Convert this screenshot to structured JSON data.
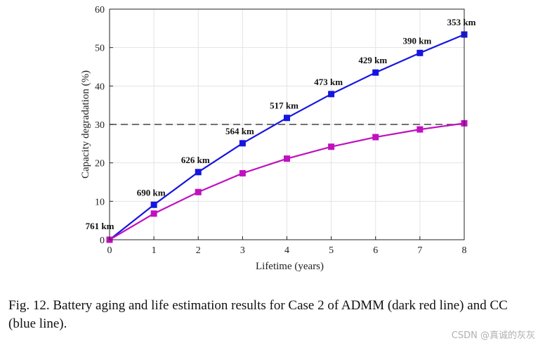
{
  "chart_data": {
    "type": "line",
    "xlabel": "Lifetime (years)",
    "ylabel": "Capacity degradation (%)",
    "xlim": [
      0,
      8
    ],
    "ylim": [
      0,
      60
    ],
    "xticks": [
      0,
      1,
      2,
      3,
      4,
      5,
      6,
      7,
      8
    ],
    "yticks": [
      0,
      10,
      20,
      30,
      40,
      50,
      60
    ],
    "grid": true,
    "threshold": {
      "y": 30,
      "style": "dashed",
      "color": "#444444"
    },
    "series": [
      {
        "color": "#1515e0",
        "marker": "square",
        "x": [
          0,
          1,
          2,
          3,
          4,
          5,
          6,
          7,
          8
        ],
        "y": [
          0,
          9.1,
          17.6,
          25.1,
          31.7,
          37.9,
          43.5,
          48.6,
          53.4
        ],
        "labels": [
          "761 km",
          "690 km",
          "626 km",
          "564 km",
          "517 km",
          "473 km",
          "429 km",
          "390 km",
          "353 km"
        ]
      },
      {
        "color": "#c010c0",
        "marker": "square",
        "x": [
          0,
          1,
          2,
          3,
          4,
          5,
          6,
          7,
          8
        ],
        "y": [
          0,
          6.8,
          12.4,
          17.3,
          21.1,
          24.2,
          26.7,
          28.7,
          30.3
        ]
      }
    ]
  },
  "caption": "Fig. 12.   Battery aging and life estimation results for Case 2 of ADMM (dark red line) and CC (blue line).",
  "watermark": "CSDN @真诚的灰灰"
}
